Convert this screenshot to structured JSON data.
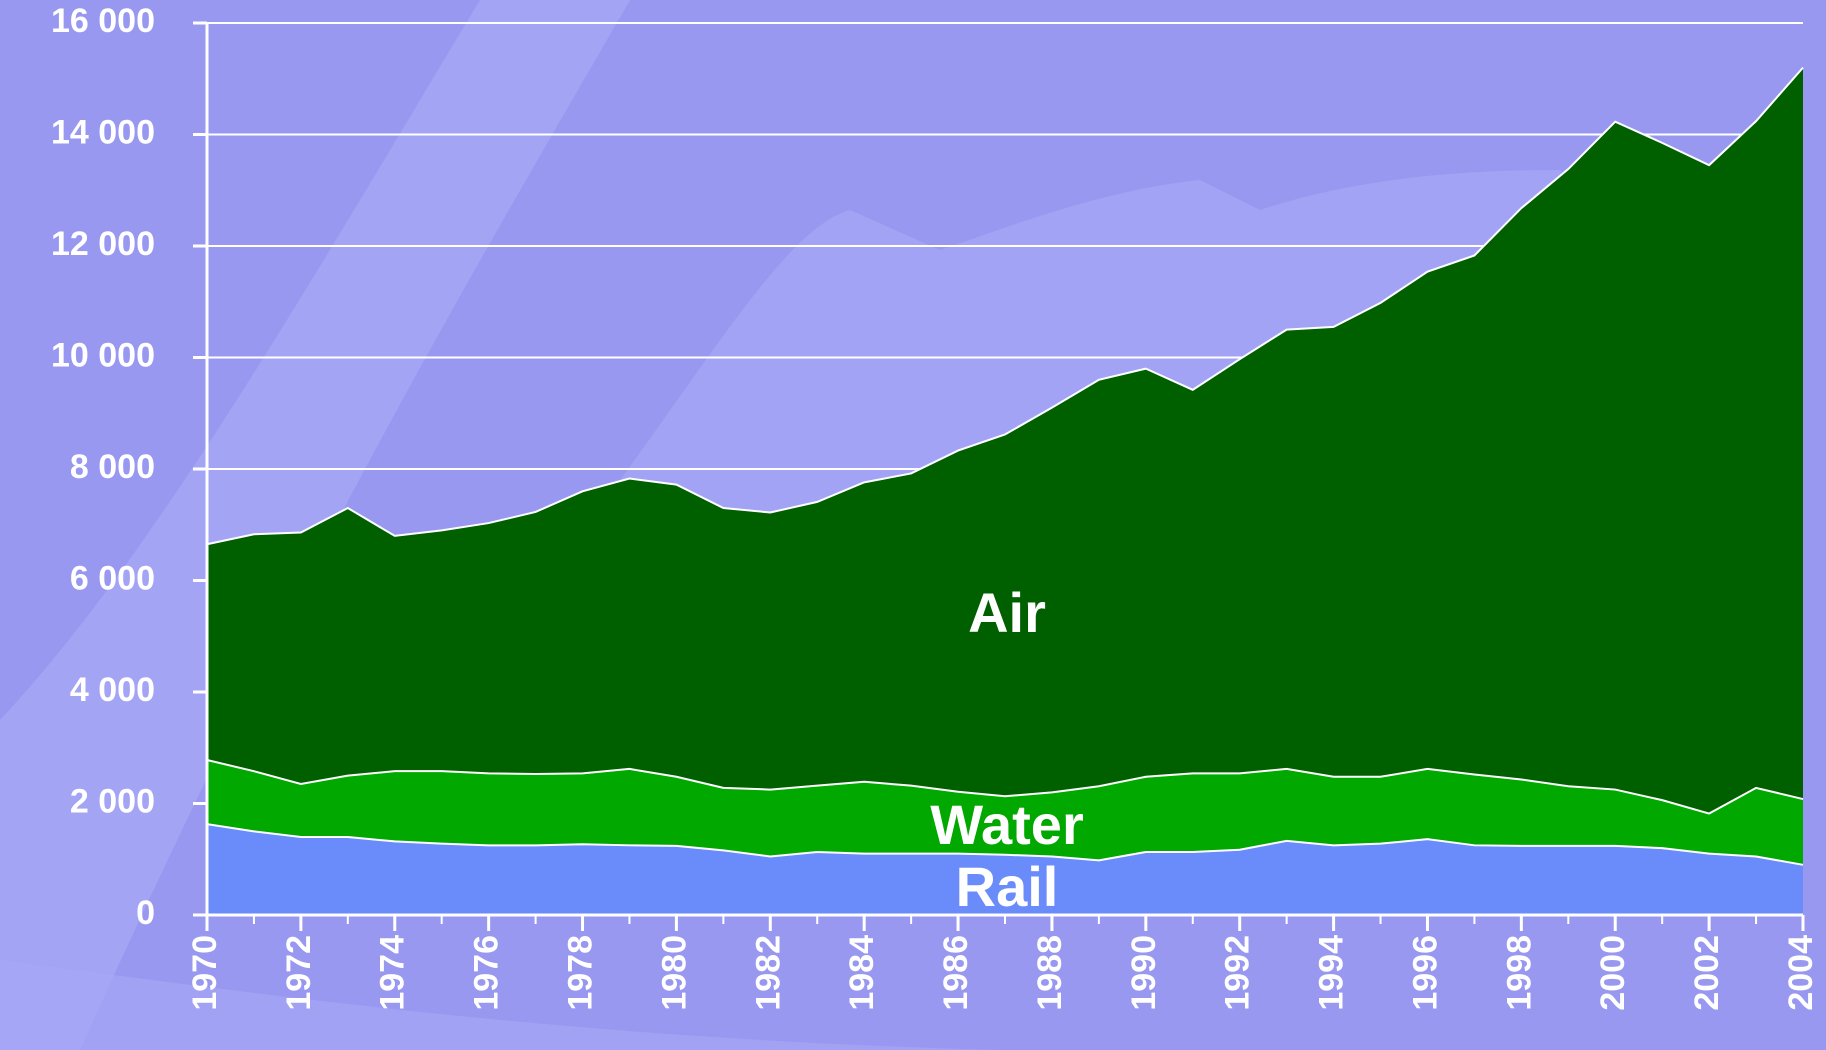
{
  "chart_data": {
    "type": "stacked_area",
    "x": [
      1970,
      1971,
      1972,
      1973,
      1974,
      1975,
      1976,
      1977,
      1978,
      1979,
      1980,
      1981,
      1982,
      1983,
      1984,
      1985,
      1986,
      1987,
      1988,
      1989,
      1990,
      1991,
      1992,
      1993,
      1994,
      1995,
      1996,
      1997,
      1998,
      1999,
      2000,
      2001,
      2002,
      2003,
      2004
    ],
    "xlim": [
      1970,
      2004
    ],
    "xticks": [
      1970,
      1972,
      1974,
      1976,
      1978,
      1980,
      1982,
      1984,
      1986,
      1988,
      1990,
      1992,
      1994,
      1996,
      1998,
      2000,
      2002,
      2004
    ],
    "ylim": [
      0,
      16000
    ],
    "yticks": [
      0,
      {
        "value": 2000,
        "label": "2 000"
      },
      {
        "value": 4000,
        "label": "4 000"
      },
      {
        "value": 6000,
        "label": "6 000"
      },
      {
        "value": 8000,
        "label": "8 000"
      },
      {
        "value": 10000,
        "label": "10 000"
      },
      {
        "value": 12000,
        "label": "12 000"
      },
      {
        "value": 14000,
        "label": "14 000"
      },
      {
        "value": 16000,
        "label": "16 000"
      }
    ],
    "grid": true,
    "series": [
      {
        "name": "Rail",
        "color": "#6a8cfa",
        "values": [
          1630,
          1500,
          1400,
          1400,
          1320,
          1280,
          1250,
          1250,
          1270,
          1250,
          1240,
          1160,
          1050,
          1130,
          1100,
          1100,
          1100,
          1080,
          1050,
          980,
          1130,
          1130,
          1170,
          1330,
          1250,
          1280,
          1360,
          1250,
          1240,
          1240,
          1240,
          1200,
          1100,
          1050,
          900
        ]
      },
      {
        "name": "Water",
        "color": "#00a800",
        "values": [
          1150,
          1080,
          950,
          1100,
          1260,
          1300,
          1290,
          1280,
          1270,
          1370,
          1240,
          1120,
          1200,
          1190,
          1290,
          1220,
          1110,
          1050,
          1150,
          1330,
          1350,
          1410,
          1370,
          1290,
          1230,
          1200,
          1260,
          1270,
          1190,
          1070,
          1010,
          860,
          720,
          1230,
          1180
        ]
      },
      {
        "name": "Air",
        "color": "#006000",
        "values": [
          3870,
          4250,
          4510,
          4800,
          4220,
          4320,
          4490,
          4700,
          5060,
          5210,
          5240,
          5020,
          4970,
          5090,
          5370,
          5600,
          6120,
          6490,
          6900,
          7290,
          7320,
          6880,
          7430,
          7880,
          8070,
          8500,
          8920,
          9310,
          10250,
          11070,
          11980,
          11790,
          11630,
          11960,
          13120
        ]
      }
    ]
  }
}
